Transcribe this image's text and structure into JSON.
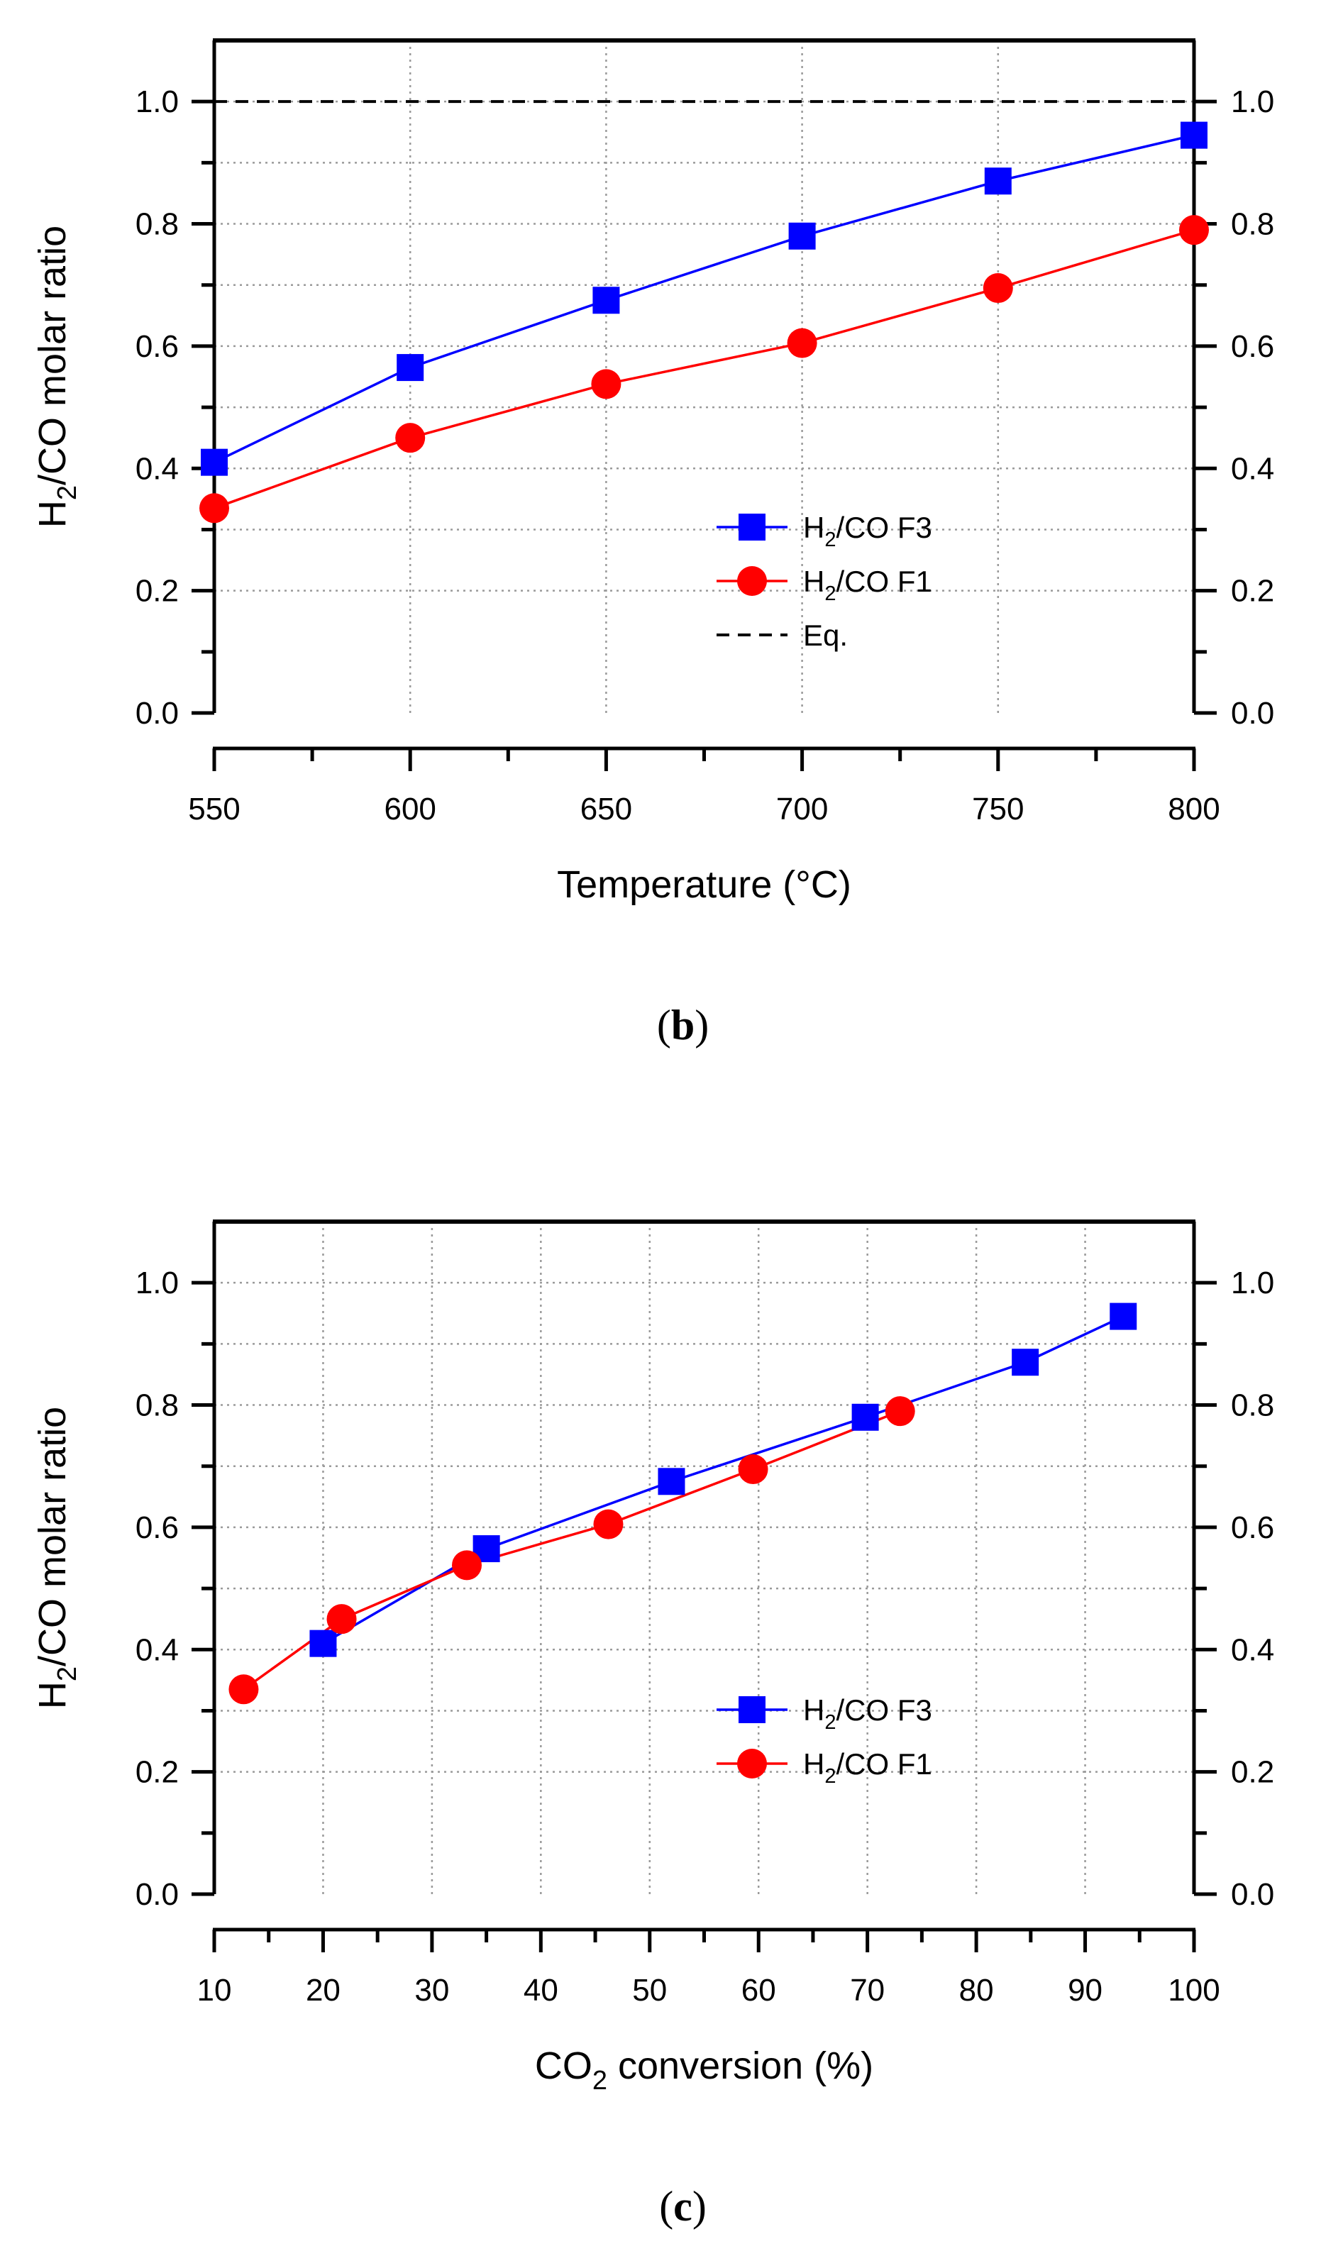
{
  "colors": {
    "series_f3": "#0000ff",
    "series_f1": "#ff0000",
    "equilibrium": "#000000",
    "grid": "#9a9a9a"
  },
  "chart_data": [
    {
      "id": "b",
      "type": "line",
      "caption": "b",
      "xlabel": "Temperature (°C)",
      "ylabel": {
        "prefix": "H",
        "sub": "2",
        "suffix": "/CO molar ratio"
      },
      "xlim": [
        550,
        800
      ],
      "ylim": [
        0,
        1.1
      ],
      "xticks": [
        550,
        600,
        650,
        700,
        750,
        800
      ],
      "xtick_labels": [
        "550",
        "600",
        "650",
        "700",
        "750",
        "800"
      ],
      "yticks": [
        0.0,
        0.2,
        0.4,
        0.6,
        0.8,
        1.0
      ],
      "ytick_labels": [
        "0.0",
        "0.2",
        "0.4",
        "0.6",
        "0.8",
        "1.0"
      ],
      "grid": true,
      "legend_position": "center-right",
      "series": [
        {
          "name": "H2/CO F3",
          "legend": {
            "prefix": "H",
            "sub": "2",
            "suffix": "/CO F3"
          },
          "marker": "square",
          "color": "#0000ff",
          "x": [
            550,
            600,
            650,
            700,
            750,
            800
          ],
          "y": [
            0.41,
            0.565,
            0.675,
            0.78,
            0.87,
            0.945
          ]
        },
        {
          "name": "H2/CO F1",
          "legend": {
            "prefix": "H",
            "sub": "2",
            "suffix": "/CO F1"
          },
          "marker": "circle",
          "color": "#ff0000",
          "x": [
            550,
            600,
            650,
            700,
            750,
            800
          ],
          "y": [
            0.335,
            0.45,
            0.538,
            0.605,
            0.695,
            0.79
          ]
        },
        {
          "name": "Eq.",
          "legend": {
            "prefix": "Eq.",
            "sub": "",
            "suffix": ""
          },
          "marker": "none",
          "style": "dashed",
          "color": "#000000",
          "x": [
            550,
            800
          ],
          "y": [
            1.0,
            1.0
          ]
        }
      ]
    },
    {
      "id": "c",
      "type": "line",
      "caption": "c",
      "xlabel": {
        "prefix": "CO",
        "sub": "2",
        "suffix": " conversion (%)"
      },
      "ylabel": {
        "prefix": "H",
        "sub": "2",
        "suffix": "/CO molar ratio"
      },
      "xlim": [
        10,
        100
      ],
      "ylim": [
        0,
        1.1
      ],
      "xticks": [
        10,
        20,
        30,
        40,
        50,
        60,
        70,
        80,
        90,
        100
      ],
      "xtick_labels": [
        "10",
        "20",
        "30",
        "40",
        "50",
        "60",
        "70",
        "80",
        "90",
        "100"
      ],
      "yticks": [
        0.0,
        0.2,
        0.4,
        0.6,
        0.8,
        1.0
      ],
      "ytick_labels": [
        "0.0",
        "0.2",
        "0.4",
        "0.6",
        "0.8",
        "1.0"
      ],
      "grid": true,
      "legend_position": "center-right",
      "series": [
        {
          "name": "H2/CO F3",
          "legend": {
            "prefix": "H",
            "sub": "2",
            "suffix": "/CO F3"
          },
          "marker": "square",
          "color": "#0000ff",
          "x": [
            20,
            35,
            52,
            69.8,
            84.5,
            93.5
          ],
          "y": [
            0.41,
            0.565,
            0.675,
            0.78,
            0.87,
            0.945
          ]
        },
        {
          "name": "H2/CO F1",
          "legend": {
            "prefix": "H",
            "sub": "2",
            "suffix": "/CO F1"
          },
          "marker": "circle",
          "color": "#ff0000",
          "x": [
            12.7,
            21.7,
            33.2,
            46.2,
            59.5,
            73
          ],
          "y": [
            0.335,
            0.45,
            0.538,
            0.605,
            0.695,
            0.79
          ]
        }
      ]
    }
  ]
}
